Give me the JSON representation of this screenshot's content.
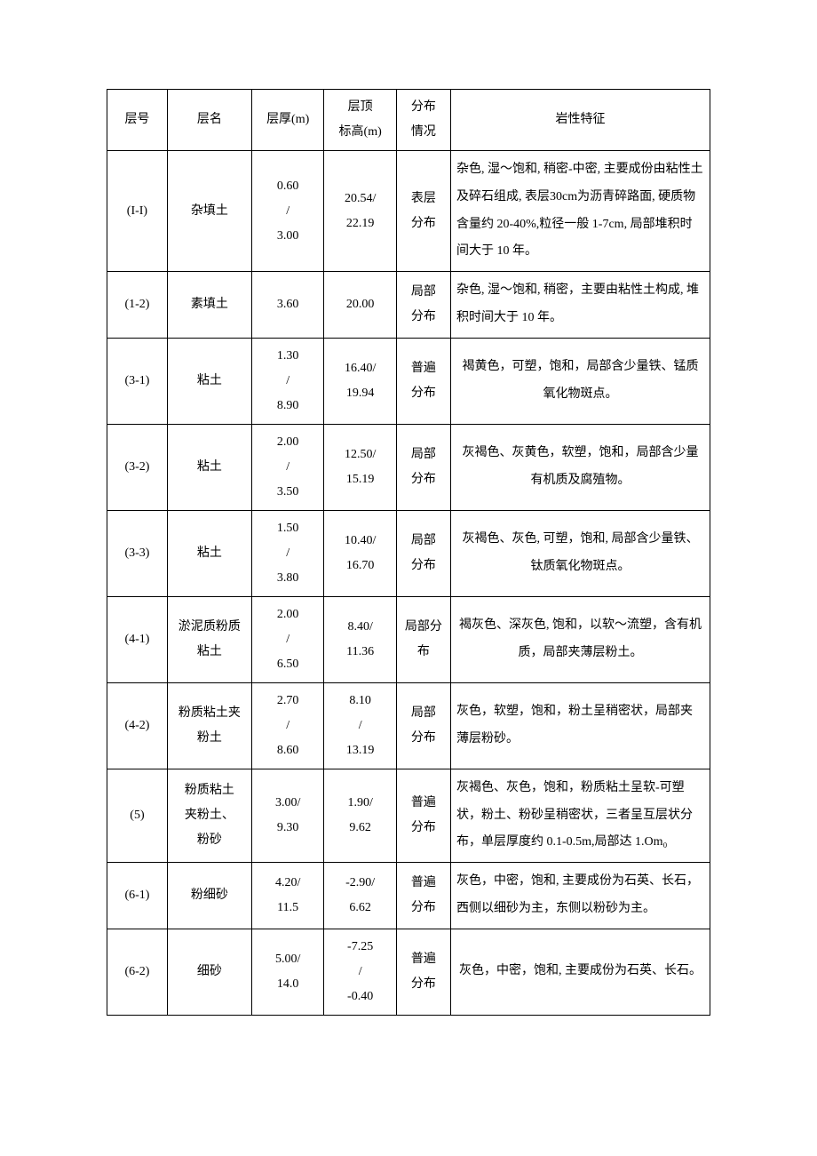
{
  "table": {
    "headers": {
      "layer_no": "层号",
      "layer_name": "层名",
      "thickness": "层厚(m)",
      "top_elev": "层顶\n标高(m)",
      "distribution": "分布\n情况",
      "description": "岩性特征"
    },
    "rows": [
      {
        "layer_no": "(I-I)",
        "layer_name": "杂填土",
        "thickness": "0.60\n/\n3.00",
        "top_elev": "20.54/\n22.19",
        "distribution": "表层\n分布",
        "description": "杂色, 湿～饱和, 稍密-中密, 主要成份由粘性土及碎石组成, 表层30cm为沥青碎路面, 硬质物含量约 20-40%,粒径一般 1-7cm, 局部堆积时间大于 10 年。",
        "desc_align": "left"
      },
      {
        "layer_no": "(1-2)",
        "layer_name": "素填土",
        "thickness": "3.60",
        "top_elev": "20.00",
        "distribution": "局部\n分布",
        "description": "杂色, 湿～饱和, 稍密，主要由粘性土构成, 堆积时间大于 10 年。",
        "desc_align": "left"
      },
      {
        "layer_no": "(3-1)",
        "layer_name": "粘土",
        "thickness": "1.30\n/\n8.90",
        "top_elev": "16.40/\n19.94",
        "distribution": "普遍\n分布",
        "description": "褐黄色，可塑，饱和，局部含少量铁、锰质氧化物斑点。",
        "desc_align": "center"
      },
      {
        "layer_no": "(3-2)",
        "layer_name": "粘土",
        "thickness": "2.00\n/\n3.50",
        "top_elev": "12.50/\n15.19",
        "distribution": "局部\n分布",
        "description": "灰褐色、灰黄色，软塑，饱和，局部含少量有机质及腐殖物。",
        "desc_align": "center"
      },
      {
        "layer_no": "(3-3)",
        "layer_name": "粘土",
        "thickness": "1.50\n/\n3.80",
        "top_elev": "10.40/\n16.70",
        "distribution": "局部\n分布",
        "description": "灰褐色、灰色, 可塑，饱和, 局部含少量铁、钛质氧化物斑点。",
        "desc_align": "center"
      },
      {
        "layer_no": "(4-1)",
        "layer_name": "淤泥质粉质\n粘土",
        "thickness": "2.00\n/\n6.50",
        "top_elev": "8.40/\n11.36",
        "distribution": "局部分\n布",
        "description": "褐灰色、深灰色, 饱和，以软～流塑，含有机质，局部夹薄层粉土。",
        "desc_align": "center"
      },
      {
        "layer_no": "(4-2)",
        "layer_name": "粉质粘土夹\n粉土",
        "thickness": "2.70\n/\n8.60",
        "top_elev": "8.10\n/\n13.19",
        "distribution": "局部\n分布",
        "description": "灰色，软塑，饱和，粉土呈稍密状，局部夹薄层粉砂。",
        "desc_align": "left"
      },
      {
        "layer_no": "(5)",
        "layer_name": "粉质粘土\n夹粉土、\n粉砂",
        "thickness": "3.00/\n9.30",
        "top_elev": "1.90/\n9.62",
        "distribution": "普遍\n分布",
        "description": "灰褐色、灰色，饱和，粉质粘土呈软-可塑状，粉土、粉砂呈稍密状，三者呈互层状分布，单层厚度约 0.1-0.5m,局部达 1.Om₀",
        "desc_align": "left"
      },
      {
        "layer_no": "(6-1)",
        "layer_name": "粉细砂",
        "thickness": "4.20/\n11.5",
        "top_elev": "-2.90/\n6.62",
        "distribution": "普遍\n分布",
        "description": "灰色，中密，饱和, 主要成份为石英、长石，西侧以细砂为主，东侧以粉砂为主。",
        "desc_align": "left"
      },
      {
        "layer_no": "(6-2)",
        "layer_name": "细砂",
        "thickness": "5.00/\n14.0",
        "top_elev": "-7.25\n/\n-0.40",
        "distribution": "普遍\n分布",
        "description": "灰色，中密，饱和, 主要成份为石英、长石。",
        "desc_align": "center"
      }
    ]
  },
  "style": {
    "font_family": "SimSun",
    "font_size_pt": 10.5,
    "line_height": 2.0,
    "border_color": "#000000",
    "background_color": "#ffffff",
    "text_color": "#000000",
    "column_widths_pct": [
      10,
      14,
      12,
      12,
      9,
      43
    ]
  }
}
